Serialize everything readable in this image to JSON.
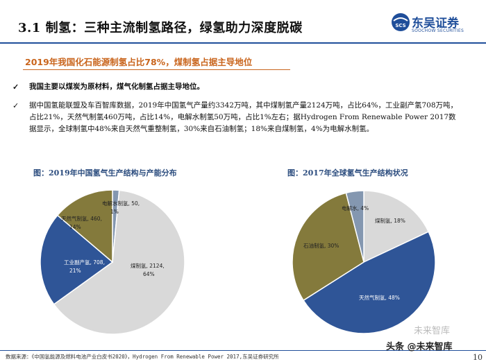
{
  "header": {
    "title": "3.1 制氢：三种主流制氢路径，绿氢助力深度脱碳",
    "logo_cn": "东吴证券",
    "logo_en": "SOOCHOW SECURITIES",
    "logo_mark": "SCS"
  },
  "subtitle": "2019年我国化石能源制氢占比78%，煤制氢占据主导地位",
  "bullets": [
    "我国主要以煤炭为原材料，煤气化制氢占据主导地位。",
    "据中国氢能联盟及车百智库数据，2019年中国氢气产量约3342万吨，其中煤制氢产量2124万吨，占比64%，工业副产氢708万吨，占比21%，天然气制氢460万吨，占比14%，电解水制氢50万吨，占比1%左右；据Hydrogen From Renewable Power 2017数据显示，全球制氢中48%来自天然气重整制氢，30%来自石油制氢；18%来自煤制氢，4%为电解水制氢。"
  ],
  "chart_data": [
    {
      "type": "pie",
      "title": "图：2019年中国氢气生产结构与产能分布",
      "slices": [
        {
          "label": "煤制氢",
          "value": 2124,
          "percent": 64,
          "display": "煤制氢, 2124,",
          "display_pct": "64%",
          "color": "#d9d9d9"
        },
        {
          "label": "工业副产氢",
          "value": 708,
          "percent": 21,
          "display": "工业副产氢, 708,",
          "display_pct": "21%",
          "color": "#2f5597"
        },
        {
          "label": "天然气制氢",
          "value": 460,
          "percent": 14,
          "display": "天然气制氢, 460,",
          "display_pct": "14%",
          "color": "#847a3c"
        },
        {
          "label": "电解水制氢",
          "value": 50,
          "percent": 1,
          "display": "电解水制氢, 50,",
          "display_pct": "1%",
          "color": "#8497b0"
        }
      ]
    },
    {
      "type": "pie",
      "title": "图：2017年全球氢气生产结构状况",
      "slices": [
        {
          "label": "天然气制氢",
          "value": 48,
          "percent": 48,
          "display": "天然气制氢, 48%",
          "color": "#2f5597"
        },
        {
          "label": "石油制氢",
          "value": 30,
          "percent": 30,
          "display": "石油制氢, 30%",
          "color": "#847a3c"
        },
        {
          "label": "电解水",
          "value": 4,
          "percent": 4,
          "display": "电解水, 4%",
          "color": "#8497b0"
        },
        {
          "label": "煤制氢",
          "value": 18,
          "percent": 18,
          "display": "煤制氢, 18%",
          "color": "#d9d9d9"
        }
      ]
    }
  ],
  "footer": {
    "source": "数据来源：《中国氢能源及燃料电池产业白皮书2020》，Hydrogen From Renewable Power 2017,东吴证券研究所",
    "page": "10"
  },
  "watermark": {
    "faint": "未来智库",
    "main": "头条 @未来智库"
  }
}
